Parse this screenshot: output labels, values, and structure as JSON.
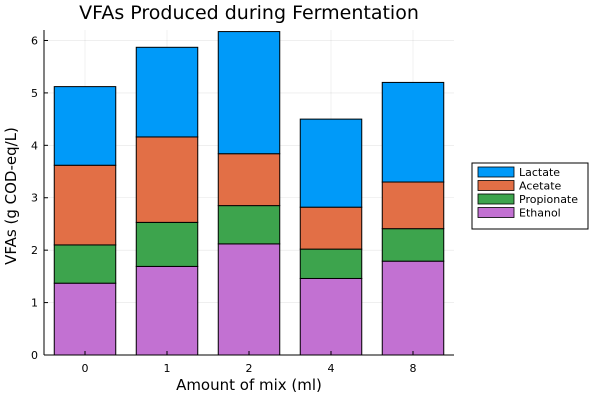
{
  "chart_data": {
    "type": "bar",
    "stacked": true,
    "title": "VFAs Produced during Fermentation",
    "xlabel": "Amount of mix (ml)",
    "ylabel": "VFAs (g COD-eq/L)",
    "categories": [
      "0",
      "1",
      "2",
      "4",
      "8"
    ],
    "ylim": [
      0,
      6.2
    ],
    "yticks": [
      0,
      1,
      2,
      3,
      4,
      5,
      6
    ],
    "grid": true,
    "legend_position": "outer-right",
    "series": [
      {
        "name": "Ethanol",
        "color": "#c271d2",
        "values": [
          1.37,
          1.69,
          2.12,
          1.46,
          1.79
        ]
      },
      {
        "name": "Propionate",
        "color": "#3da44d",
        "values": [
          0.73,
          0.84,
          0.73,
          0.56,
          0.62
        ]
      },
      {
        "name": "Acetate",
        "color": "#e26f46",
        "values": [
          1.52,
          1.63,
          0.99,
          0.8,
          0.89
        ]
      },
      {
        "name": "Lactate",
        "color": "#009af9",
        "values": [
          1.5,
          1.71,
          2.33,
          1.68,
          1.9
        ]
      }
    ],
    "legend_order": [
      "Lactate",
      "Acetate",
      "Propionate",
      "Ethanol"
    ]
  }
}
